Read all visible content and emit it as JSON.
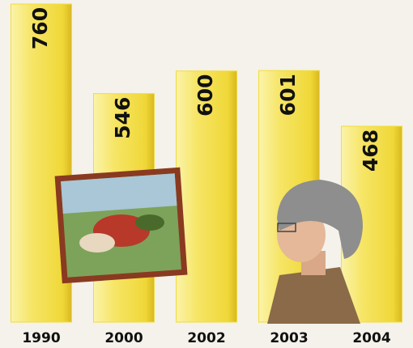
{
  "chart_data": {
    "type": "bar",
    "categories": [
      "1990",
      "2000",
      "2002",
      "2003",
      "2004"
    ],
    "values": [
      760,
      546,
      600,
      601,
      468
    ],
    "color": "#f2dc3c"
  }
}
